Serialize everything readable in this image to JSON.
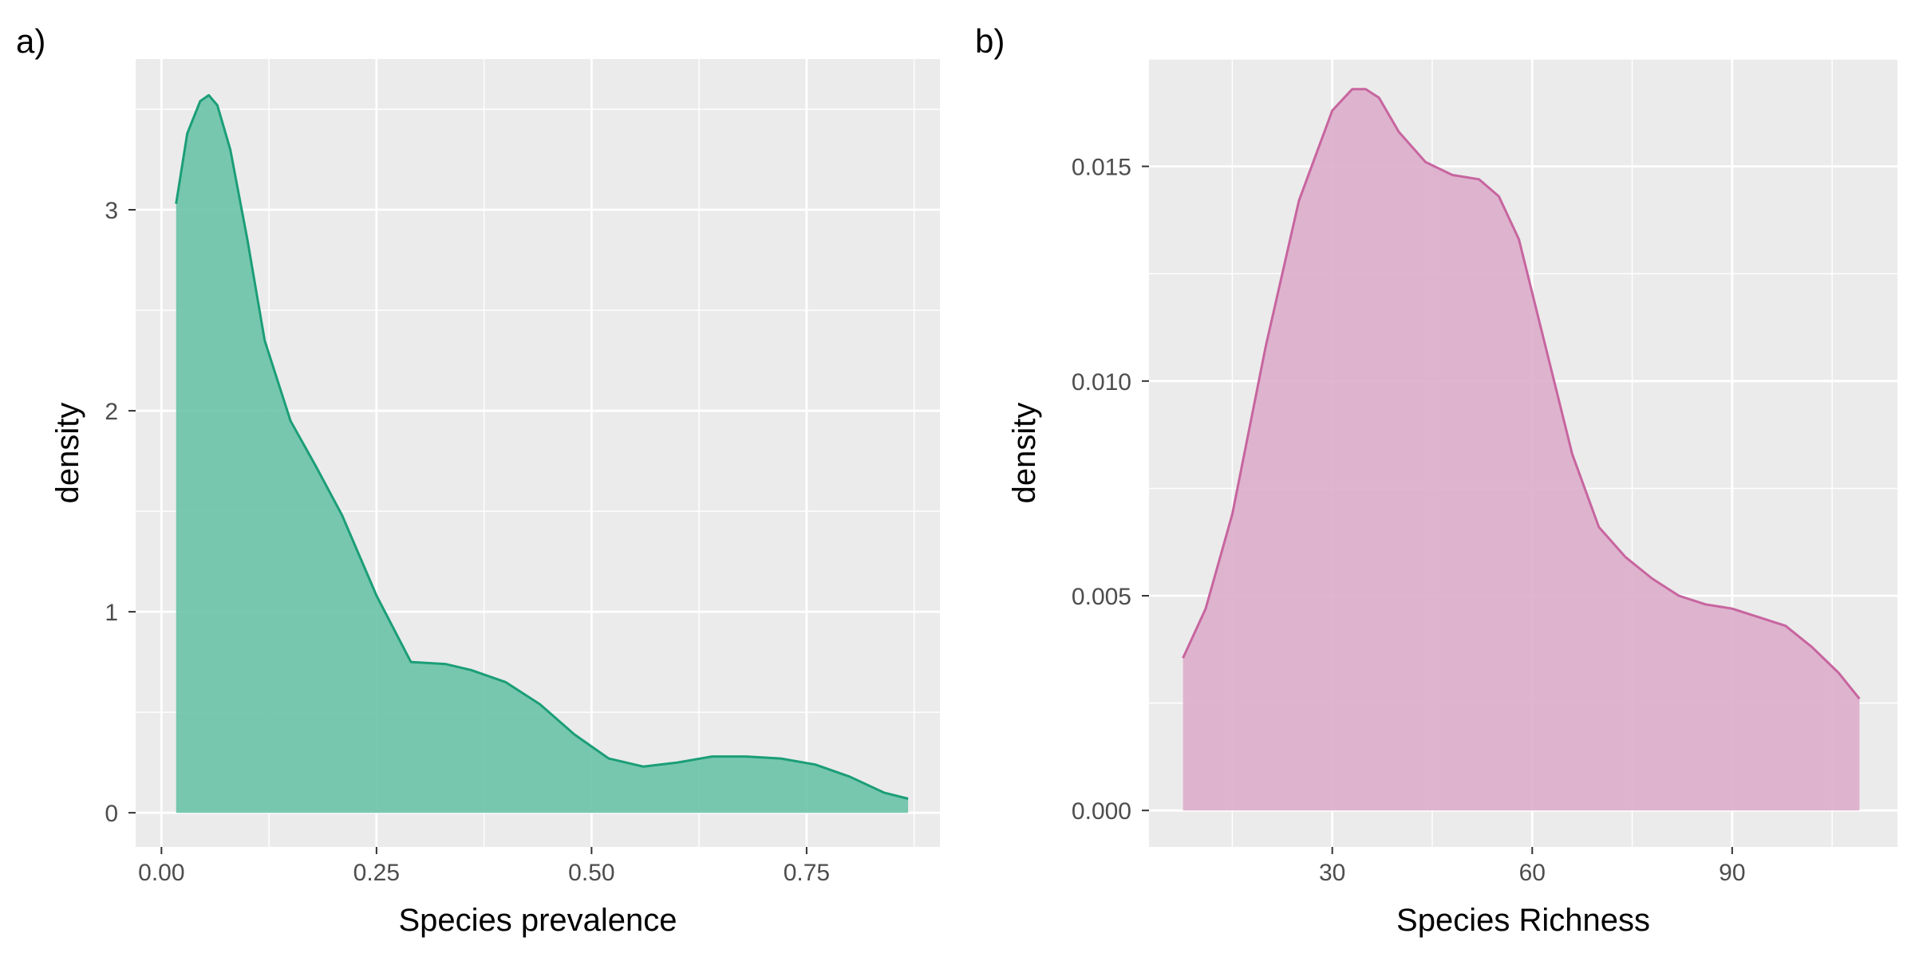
{
  "chart_data": [
    {
      "panel": "a)",
      "type": "area",
      "xlabel": "Species prevalence",
      "ylabel": "density",
      "xlim": [
        -0.03,
        0.905
      ],
      "ylim": [
        -0.17,
        3.75
      ],
      "x_ticks": [
        0.0,
        0.25,
        0.5,
        0.75
      ],
      "x_tick_labels": [
        "0.00",
        "0.25",
        "0.50",
        "0.75"
      ],
      "y_ticks": [
        0,
        1,
        2,
        3
      ],
      "y_tick_labels": [
        "0",
        "1",
        "2",
        "3"
      ],
      "grid": true,
      "fill_color": "#66c2a5",
      "line_color": "#1b9e77",
      "series": [
        {
          "x": [
            0.017,
            0.03,
            0.045,
            0.055,
            0.065,
            0.08,
            0.1,
            0.12,
            0.15,
            0.18,
            0.21,
            0.25,
            0.29,
            0.33,
            0.36,
            0.4,
            0.44,
            0.48,
            0.52,
            0.56,
            0.6,
            0.64,
            0.68,
            0.72,
            0.76,
            0.8,
            0.84,
            0.868
          ],
          "y": [
            3.03,
            3.38,
            3.54,
            3.57,
            3.52,
            3.3,
            2.85,
            2.35,
            1.95,
            1.72,
            1.48,
            1.08,
            0.75,
            0.74,
            0.71,
            0.65,
            0.54,
            0.39,
            0.27,
            0.23,
            0.25,
            0.28,
            0.28,
            0.27,
            0.24,
            0.18,
            0.1,
            0.07
          ]
        }
      ]
    },
    {
      "panel": "b)",
      "type": "area",
      "xlabel": "Species Richness",
      "ylabel": "density",
      "xlim": [
        2.5,
        114.8
      ],
      "ylim": [
        -0.00085,
        0.0175
      ],
      "x_ticks": [
        30,
        60,
        90
      ],
      "x_tick_labels": [
        "30",
        "60",
        "90"
      ],
      "y_ticks": [
        0.0,
        0.005,
        0.01,
        0.015
      ],
      "y_tick_labels": [
        "0.000",
        "0.005",
        "0.010",
        "0.015"
      ],
      "grid": true,
      "fill_color": "#dcabc9",
      "line_color": "#c7659f",
      "series": [
        {
          "x": [
            7.6,
            11,
            15,
            20,
            25,
            30,
            33,
            35,
            37,
            40,
            44,
            48,
            52,
            55,
            58,
            62,
            66,
            70,
            74,
            78,
            82,
            86,
            90,
            94,
            98,
            102,
            106,
            109.1
          ],
          "y": [
            0.00355,
            0.0047,
            0.0069,
            0.0108,
            0.0142,
            0.0163,
            0.0168,
            0.0168,
            0.0166,
            0.0158,
            0.0151,
            0.0148,
            0.0147,
            0.0143,
            0.0133,
            0.0108,
            0.0083,
            0.0066,
            0.0059,
            0.0054,
            0.005,
            0.0048,
            0.0047,
            0.0045,
            0.0043,
            0.0038,
            0.0032,
            0.0026
          ]
        }
      ]
    }
  ]
}
